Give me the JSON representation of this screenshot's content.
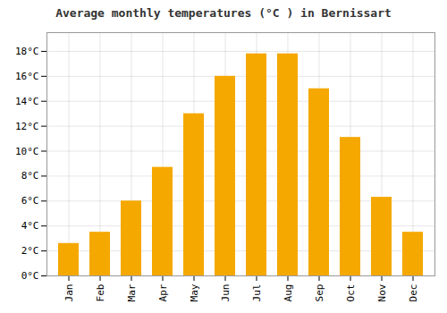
{
  "chart_data": {
    "type": "bar",
    "title": "Average monthly temperatures (°C ) in Bernissart",
    "categories": [
      "Jan",
      "Feb",
      "Mar",
      "Apr",
      "May",
      "Jun",
      "Jul",
      "Aug",
      "Sep",
      "Oct",
      "Nov",
      "Dec"
    ],
    "values": [
      2.6,
      3.5,
      6.0,
      8.7,
      13.0,
      16.0,
      17.8,
      17.8,
      15.0,
      11.1,
      6.3,
      3.5
    ],
    "color": "#F5A800",
    "ylim": [
      0,
      19.5
    ],
    "yticks": [
      {
        "value": 0,
        "label": "0°C"
      },
      {
        "value": 2,
        "label": "2°C"
      },
      {
        "value": 4,
        "label": "4°C"
      },
      {
        "value": 6,
        "label": "6°C"
      },
      {
        "value": 8,
        "label": "8°C"
      },
      {
        "value": 10,
        "label": "10°C"
      },
      {
        "value": 12,
        "label": "12°C"
      },
      {
        "value": 14,
        "label": "14°C"
      },
      {
        "value": 16,
        "label": "16°C"
      },
      {
        "value": 18,
        "label": "18°C"
      }
    ],
    "grid": true
  }
}
